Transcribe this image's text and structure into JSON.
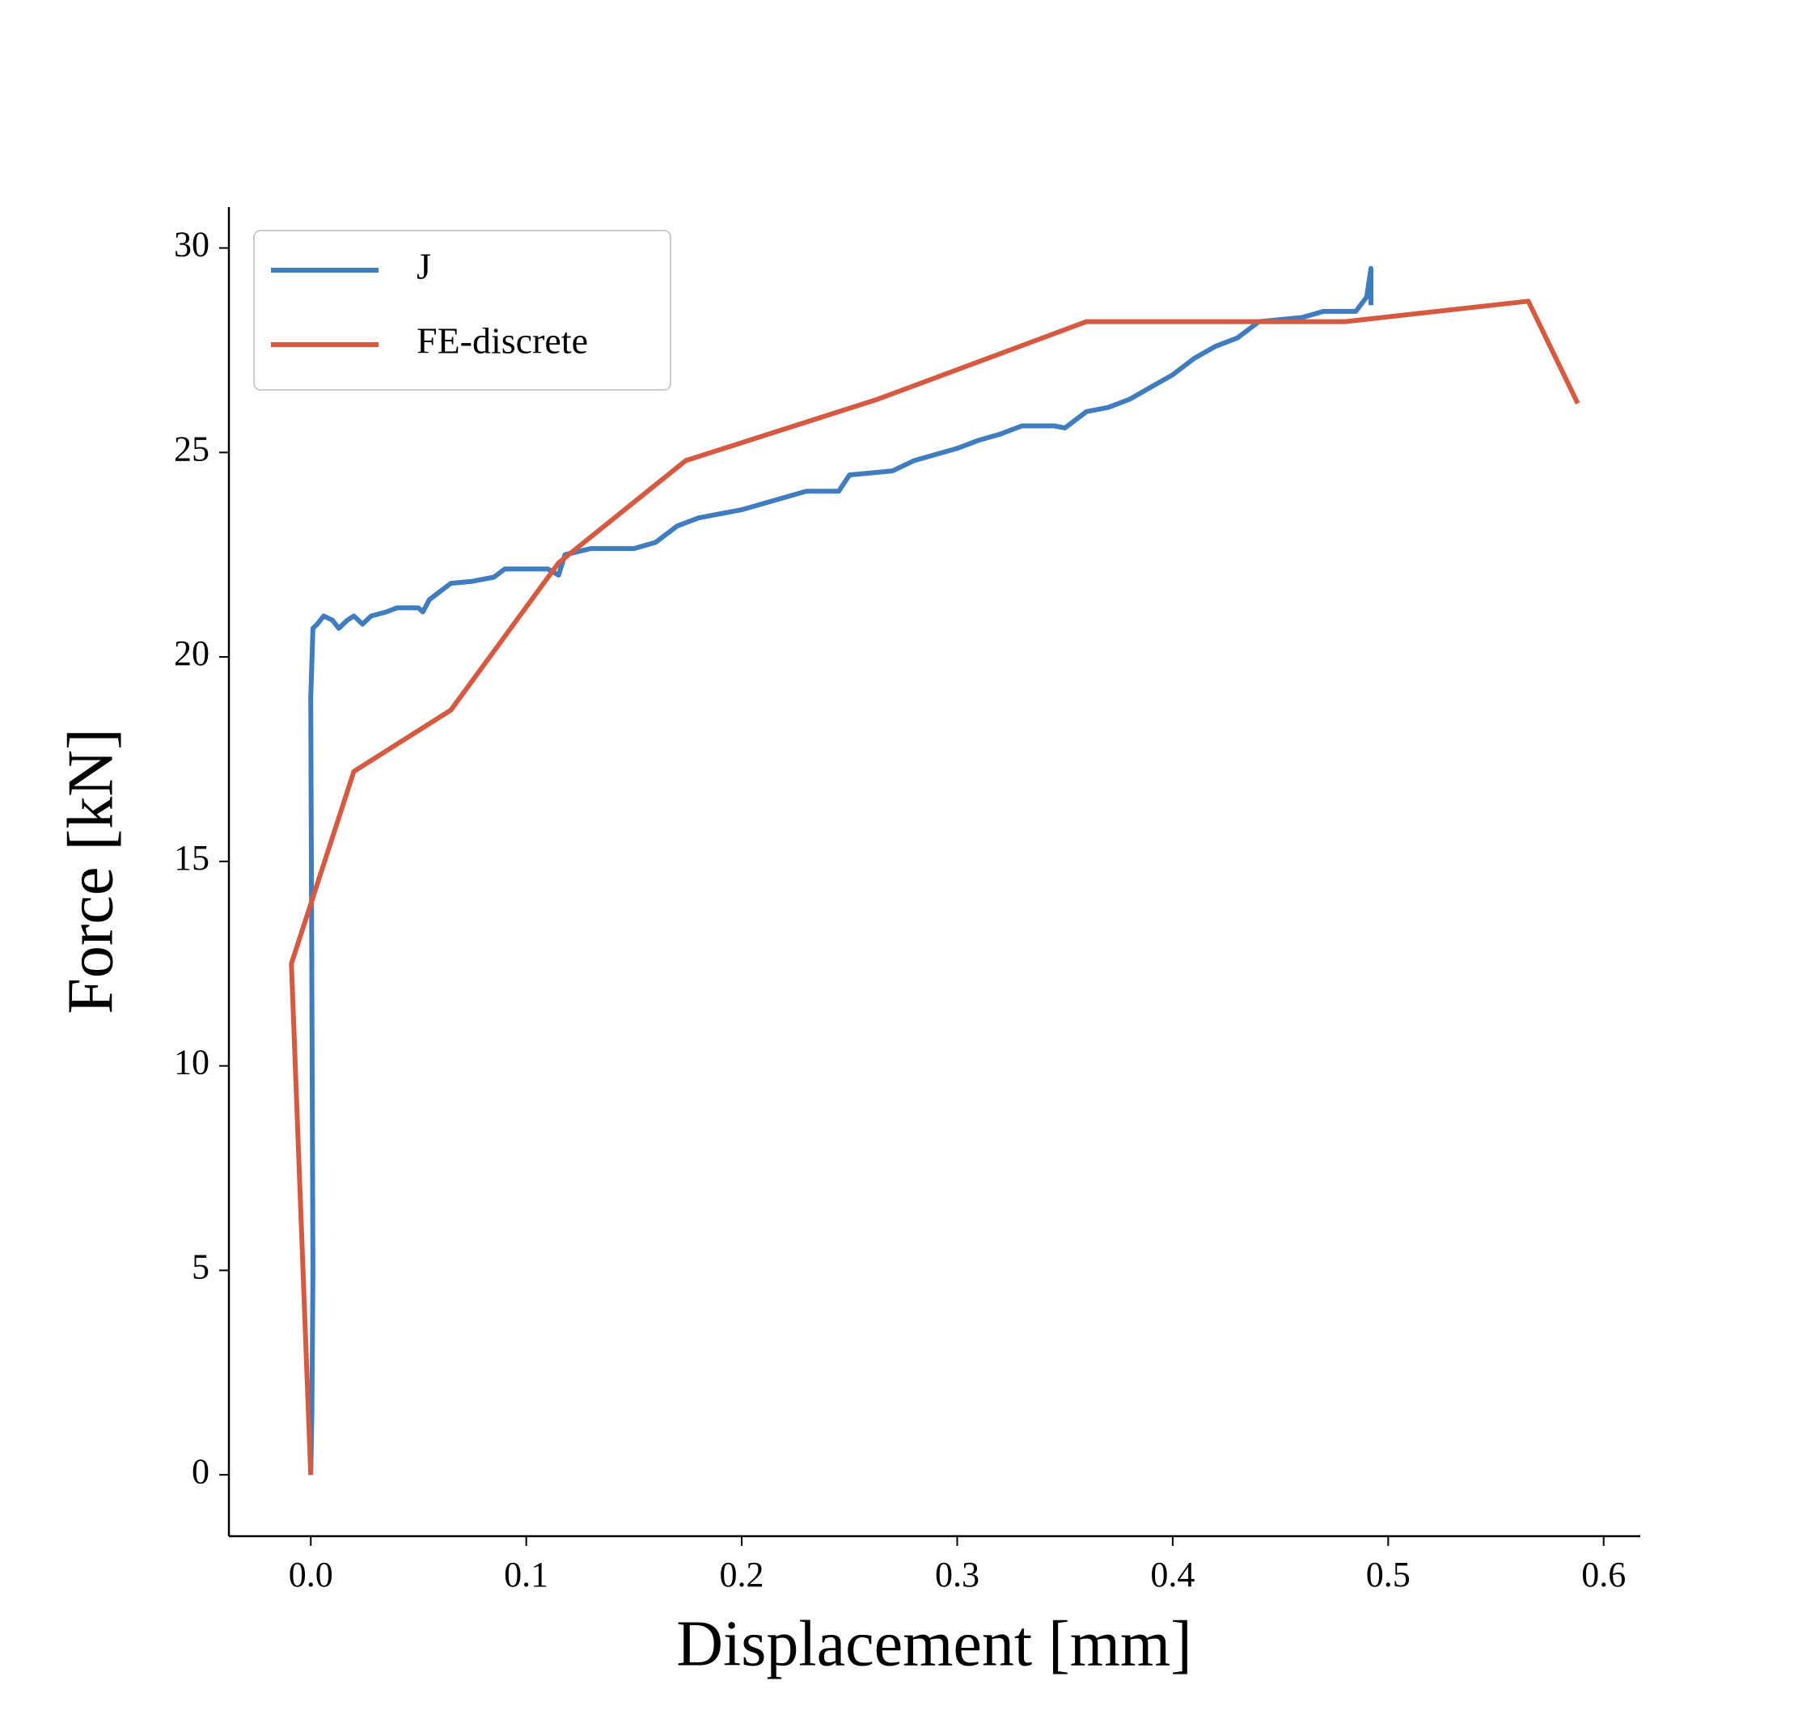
{
  "chart_data": {
    "type": "line",
    "xlabel": "Displacement [mm]",
    "ylabel": "Force [kN]",
    "xlim": [
      -0.038,
      0.617
    ],
    "ylim": [
      -1.5,
      31
    ],
    "xticks": [
      {
        "value": 0,
        "label": "0.0"
      },
      0.1,
      0.2,
      0.3,
      0.4,
      0.5,
      0.6
    ],
    "yticks": [
      0,
      5,
      10,
      15,
      20,
      25,
      30
    ],
    "legend": "upper left",
    "grid": false,
    "series": [
      {
        "name": "J",
        "color": "#3f7dbf",
        "x": [
          0,
          0.0005,
          0.001,
          0,
          0.001,
          0.003,
          0.006,
          0.01,
          0.013,
          0.017,
          0.02,
          0.024,
          0.028,
          0.035,
          0.04,
          0.05,
          0.052,
          0.055,
          0.06,
          0.065,
          0.075,
          0.085,
          0.09,
          0.11,
          0.115,
          0.118,
          0.13,
          0.15,
          0.16,
          0.17,
          0.18,
          0.2,
          0.21,
          0.22,
          0.23,
          0.245,
          0.25,
          0.26,
          0.27,
          0.28,
          0.3,
          0.31,
          0.32,
          0.33,
          0.345,
          0.35,
          0.36,
          0.37,
          0.38,
          0.39,
          0.4,
          0.41,
          0.42,
          0.43,
          0.44,
          0.46,
          0.47,
          0.485,
          0.49,
          0.492,
          0.492
        ],
        "values": [
          0,
          1.5,
          5,
          19,
          20.7,
          20.8,
          21.0,
          20.9,
          20.7,
          20.9,
          21.0,
          20.8,
          21.0,
          21.1,
          21.2,
          21.2,
          21.1,
          21.4,
          21.6,
          21.8,
          21.85,
          21.95,
          22.15,
          22.15,
          22.0,
          22.5,
          22.65,
          22.65,
          22.8,
          23.2,
          23.4,
          23.6,
          23.75,
          23.9,
          24.05,
          24.05,
          24.45,
          24.5,
          24.55,
          24.8,
          25.1,
          25.3,
          25.45,
          25.65,
          25.65,
          25.6,
          26.0,
          26.1,
          26.3,
          26.6,
          26.9,
          27.3,
          27.6,
          27.8,
          28.2,
          28.3,
          28.45,
          28.45,
          28.8,
          29.5,
          28.6
        ]
      },
      {
        "name": "FE-discrete",
        "color": "#d65a42",
        "x": [
          0,
          -0.009,
          0.02,
          0.065,
          0.115,
          0.174,
          0.263,
          0.36,
          0.48,
          0.565,
          0.588
        ],
        "values": [
          0,
          12.5,
          17.2,
          18.7,
          22.3,
          24.8,
          26.3,
          28.2,
          28.2,
          28.7,
          26.2
        ]
      }
    ]
  }
}
